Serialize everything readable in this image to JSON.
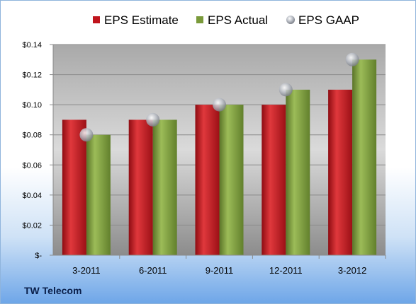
{
  "chart_data": {
    "type": "bar",
    "categories": [
      "3-2011",
      "6-2011",
      "9-2011",
      "12-2011",
      "3-2012"
    ],
    "series": [
      {
        "name": "EPS Estimate",
        "kind": "bar",
        "color": "#c0141c",
        "values": [
          0.09,
          0.09,
          0.1,
          0.1,
          0.11
        ]
      },
      {
        "name": "EPS Actual",
        "kind": "bar",
        "color": "#7a9a3a",
        "values": [
          0.08,
          0.09,
          0.1,
          0.11,
          0.13
        ]
      },
      {
        "name": "EPS GAAP",
        "kind": "marker",
        "color": "#b0b4bc",
        "values": [
          0.08,
          0.09,
          0.1,
          0.11,
          0.13
        ]
      }
    ],
    "yticks": [
      {
        "value": 0,
        "label": "$-"
      },
      {
        "value": 0.02,
        "label": "$0.02"
      },
      {
        "value": 0.04,
        "label": "$0.04"
      },
      {
        "value": 0.06,
        "label": "$0.06"
      },
      {
        "value": 0.08,
        "label": "$0.08"
      },
      {
        "value": 0.1,
        "label": "$0.10"
      },
      {
        "value": 0.12,
        "label": "$0.12"
      },
      {
        "value": 0.14,
        "label": "$0.14"
      }
    ],
    "ylim": [
      0,
      0.14
    ],
    "grid": true,
    "legend_position": "top"
  },
  "company": "TW Telecom"
}
